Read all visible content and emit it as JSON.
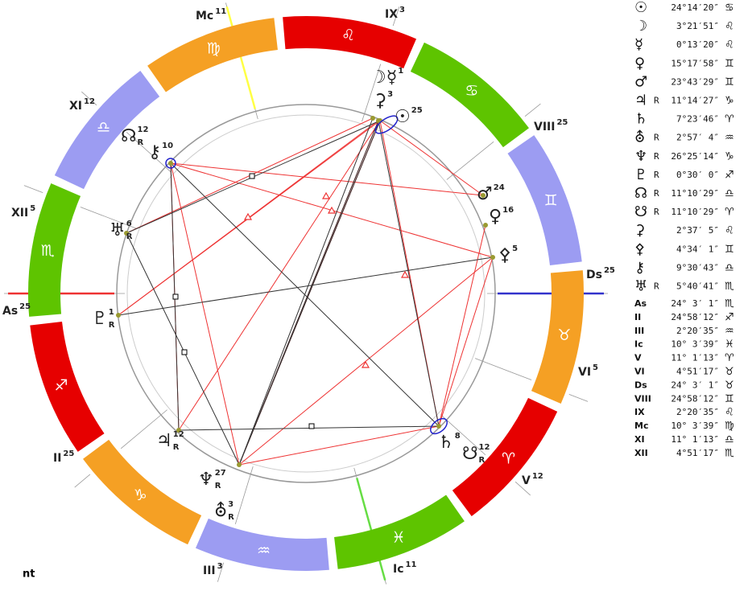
{
  "wheel": {
    "signs": [
      "♊︎",
      "♋︎",
      "♌︎",
      "♍︎",
      "♎︎",
      "♏︎",
      "♐︎",
      "♑︎",
      "♒︎",
      "♓︎",
      "♈︎",
      "♉︎"
    ],
    "house_labels": [
      {
        "name": "Mc",
        "degree": "11"
      },
      {
        "name": "IX",
        "degree": "3"
      },
      {
        "name": "VIII",
        "degree": "25"
      },
      {
        "name": "Ds",
        "degree": "25"
      },
      {
        "name": "VI",
        "degree": "5"
      },
      {
        "name": "V",
        "degree": "12"
      },
      {
        "name": "Ic",
        "degree": "11"
      },
      {
        "name": "III",
        "degree": "3"
      },
      {
        "name": "II",
        "degree": "25"
      },
      {
        "name": "As",
        "degree": "25"
      },
      {
        "name": "XII",
        "degree": "5"
      },
      {
        "name": "XI",
        "degree": "12"
      }
    ],
    "planet_labels": [
      {
        "glyph": "☽☿",
        "degree": "1"
      },
      {
        "glyph": "⚳",
        "degree": "3"
      },
      {
        "glyph": "☉",
        "degree": "25"
      },
      {
        "glyph": "☊",
        "degree": "12",
        "retro": "R"
      },
      {
        "glyph": "⚷",
        "degree": "10"
      },
      {
        "glyph": "♅",
        "degree": "6",
        "retro": "R"
      },
      {
        "glyph": "♇",
        "degree": "1",
        "retro": "R"
      },
      {
        "glyph": "♃",
        "degree": "12",
        "retro": "R"
      },
      {
        "glyph": "♆",
        "degree": "27",
        "retro": "R"
      },
      {
        "glyph": "⛢",
        "degree": "3",
        "retro": "R"
      },
      {
        "glyph": "♂",
        "degree": "24"
      },
      {
        "glyph": "♀",
        "degree": "16"
      },
      {
        "glyph": "⚴",
        "degree": "5"
      },
      {
        "glyph": "♄",
        "degree": "8"
      },
      {
        "glyph": "☋",
        "degree": "12",
        "retro": "R"
      }
    ]
  },
  "table": {
    "rows": [
      {
        "glyph": "☉",
        "position": "24°14′20″",
        "sign": "♋︎"
      },
      {
        "glyph": "☽",
        "position": "3°21′51″",
        "sign": "♌︎"
      },
      {
        "glyph": "☿",
        "position": "0°13′20″",
        "sign": "♌︎"
      },
      {
        "glyph": "♀",
        "position": "15°17′58″",
        "sign": "♊︎"
      },
      {
        "glyph": "♂",
        "position": "23°43′29″",
        "sign": "♊︎"
      },
      {
        "glyph": "♃",
        "retro": "R",
        "position": "11°14′27″",
        "sign": "♑︎"
      },
      {
        "glyph": "♄",
        "position": "7°23′46″",
        "sign": "♈︎"
      },
      {
        "glyph": "⛢",
        "retro": "R",
        "position": "2°57′ 4″",
        "sign": "♒︎"
      },
      {
        "glyph": "♆",
        "retro": "R",
        "position": "26°25′14″",
        "sign": "♑︎"
      },
      {
        "glyph": "♇",
        "retro": "R",
        "position": "0°30′ 0″",
        "sign": "♐︎"
      },
      {
        "glyph": "☊",
        "retro": "R",
        "position": "11°10′29″",
        "sign": "♎︎"
      },
      {
        "glyph": "☋",
        "retro": "R",
        "position": "11°10′29″",
        "sign": "♈︎"
      },
      {
        "glyph": "⚳",
        "position": "2°37′ 5″",
        "sign": "♌︎"
      },
      {
        "glyph": "⚴",
        "position": "4°34′ 1″",
        "sign": "♊︎"
      },
      {
        "glyph": "⚷",
        "position": "9°30′43″",
        "sign": "♎︎"
      },
      {
        "glyph": "♅",
        "retro": "R",
        "position": "5°40′41″",
        "sign": "♏︎"
      },
      {
        "glyph": "As",
        "position": "24° 3′ 1″",
        "sign": "♏︎"
      },
      {
        "glyph": "II",
        "position": "24°58′12″",
        "sign": "♐︎"
      },
      {
        "glyph": "III",
        "position": "2°20′35″",
        "sign": "♒︎"
      },
      {
        "glyph": "Ic",
        "position": "10° 3′39″",
        "sign": "♓︎"
      },
      {
        "glyph": "V",
        "position": "11° 1′13″",
        "sign": "♈︎"
      },
      {
        "glyph": "VI",
        "position": "4°51′17″",
        "sign": "♉︎"
      },
      {
        "glyph": "Ds",
        "position": "24° 3′ 1″",
        "sign": "♉︎"
      },
      {
        "glyph": "VIII",
        "position": "24°58′12″",
        "sign": "♊︎"
      },
      {
        "glyph": "IX",
        "position": "2°20′35″",
        "sign": "♌︎"
      },
      {
        "glyph": "Mc",
        "position": "10° 3′39″",
        "sign": "♍︎"
      },
      {
        "glyph": "XI",
        "position": "11° 1′13″",
        "sign": "♎︎"
      },
      {
        "glyph": "XII",
        "position": "4°51′17″",
        "sign": "♏︎"
      }
    ]
  },
  "footer": "nt"
}
